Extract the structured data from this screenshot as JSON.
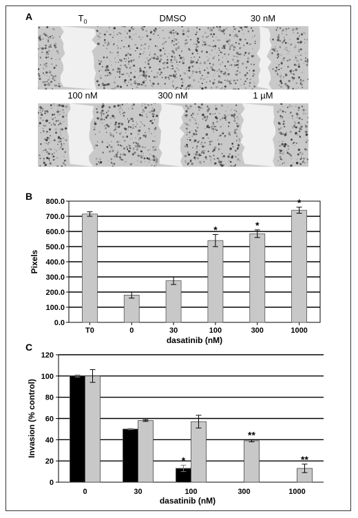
{
  "panels": {
    "a": {
      "letter": "A"
    },
    "b": {
      "letter": "B"
    },
    "c": {
      "letter": "C"
    }
  },
  "photos": [
    {
      "label": "T",
      "sub": "0",
      "gap": "wide"
    },
    {
      "label": "DMSO",
      "sub": "",
      "gap": "none"
    },
    {
      "label": "30 nM",
      "sub": "",
      "gap": "narrow"
    },
    {
      "label": "100 nM",
      "sub": "",
      "gap": "mid"
    },
    {
      "label": "300 nM",
      "sub": "",
      "gap": "mid"
    },
    {
      "label": "1 µM",
      "sub": "",
      "gap": "wide"
    }
  ],
  "chart_data": [
    {
      "type": "bar",
      "xlabel": "dasatinib (nM)",
      "ylabel": "Pixels",
      "categories": [
        "T0",
        "0",
        "30",
        "100",
        "300",
        "1000"
      ],
      "values": [
        715,
        180,
        275,
        540,
        585,
        740
      ],
      "errors": [
        15,
        20,
        25,
        40,
        25,
        20
      ],
      "significance": [
        "",
        "",
        "",
        "*",
        "*",
        "*"
      ],
      "ylim": [
        0,
        800
      ],
      "yticks": [
        "0.0",
        "100.0",
        "200.0",
        "300.0",
        "400.0",
        "500.0",
        "600.0",
        "700.0",
        "800.0"
      ],
      "grid": true,
      "bar_color": "#c8c8c8"
    },
    {
      "type": "bar",
      "xlabel": "dasatinib (nM)",
      "ylabel": "Invasion (% control)",
      "categories": [
        "0",
        "30",
        "100",
        "300",
        "1000"
      ],
      "series": [
        {
          "values": [
            100,
            50,
            13,
            null,
            null
          ],
          "errors": [
            1,
            0.5,
            3,
            null,
            null
          ],
          "color": "#000000"
        },
        {
          "values": [
            100,
            58,
            57,
            39,
            13
          ],
          "errors": [
            6,
            0.8,
            6,
            1,
            4
          ],
          "color": "#c8c8c8"
        }
      ],
      "significance": [
        [
          "",
          "",
          "*",
          "",
          ""
        ],
        [
          "",
          "",
          "",
          "**",
          "**"
        ]
      ],
      "ylim": [
        0,
        120
      ],
      "yticks": [
        "0",
        "20",
        "40",
        "60",
        "80",
        "100",
        "120"
      ],
      "grid": true
    }
  ]
}
